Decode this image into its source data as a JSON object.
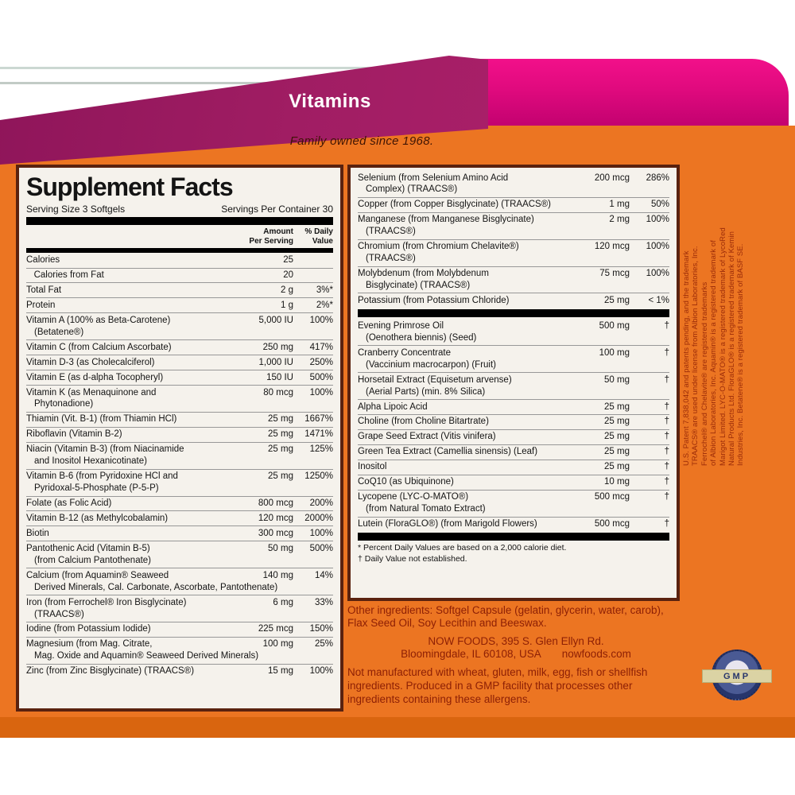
{
  "header": {
    "category_banner": "Vitamins",
    "tagline": "Family owned since 1968."
  },
  "colors": {
    "label_orange": "#EC7522",
    "label_orange_dark": "#D9650F",
    "band_pink": "#E80B80",
    "band_magenta": "#9C1A60",
    "panel_border": "#5A220F",
    "footer_text_red": "#8E2005",
    "seal_navy": "#27356B",
    "seal_ribbon": "#DBD3A4"
  },
  "supplement_facts": {
    "title": "Supplement Facts",
    "serving_size": "Serving Size 3 Softgels",
    "servings_per_container": "Servings Per Container 30",
    "amount_header_line1": "Amount",
    "amount_header_line2": "Per Serving",
    "dv_header_line1": "% Daily",
    "dv_header_line2": "Value",
    "left_rows": [
      {
        "name": "Calories",
        "name2": "",
        "amount": "25",
        "dv": ""
      },
      {
        "name": "   Calories from Fat",
        "name2": "",
        "amount": "20",
        "dv": ""
      },
      {
        "name": "Total Fat",
        "name2": "",
        "amount": "2 g",
        "dv": "3%*"
      },
      {
        "name": "Protein",
        "name2": "",
        "amount": "1 g",
        "dv": "2%*"
      },
      {
        "name": "Vitamin A (100% as Beta-Carotene)",
        "name2": "(Betatene®)",
        "amount": "5,000 IU",
        "dv": "100%"
      },
      {
        "name": "Vitamin C (from Calcium Ascorbate)",
        "name2": "",
        "amount": "250 mg",
        "dv": "417%"
      },
      {
        "name": "Vitamin D-3 (as Cholecalciferol)",
        "name2": "",
        "amount": "1,000 IU",
        "dv": "250%"
      },
      {
        "name": "Vitamin E (as d-alpha Tocopheryl)",
        "name2": "",
        "amount": "150 IU",
        "dv": "500%"
      },
      {
        "name": "Vitamin K (as Menaquinone and",
        "name2": "Phytonadione)",
        "amount": "80 mcg",
        "dv": "100%"
      },
      {
        "name": "Thiamin (Vit. B-1) (from Thiamin HCl)",
        "name2": "",
        "amount": "25 mg",
        "dv": "1667%"
      },
      {
        "name": "Riboflavin (Vitamin B-2)",
        "name2": "",
        "amount": "25 mg",
        "dv": "1471%"
      },
      {
        "name": "Niacin (Vitamin B-3) (from Niacinamide",
        "name2": "and Inositol Hexanicotinate)",
        "amount": "25 mg",
        "dv": "125%"
      },
      {
        "name": "Vitamin B-6 (from Pyridoxine HCl and",
        "name2": "Pyridoxal-5-Phosphate (P-5-P)",
        "amount": "25 mg",
        "dv": "1250%"
      },
      {
        "name": "Folate (as Folic Acid)",
        "name2": "",
        "amount": "800 mcg",
        "dv": "200%"
      },
      {
        "name": "Vitamin B-12 (as Methylcobalamin)",
        "name2": "",
        "amount": "120 mcg",
        "dv": "2000%"
      },
      {
        "name": "Biotin",
        "name2": "",
        "amount": "300 mcg",
        "dv": "100%"
      },
      {
        "name": "Pantothenic Acid (Vitamin B-5)",
        "name2": "(from Calcium Pantothenate)",
        "amount": "50 mg",
        "dv": "500%"
      },
      {
        "name": "Calcium (from Aquamin® Seaweed",
        "name2": "Derived Minerals, Cal. Carbonate, Ascorbate, Pantothenate)",
        "amount": "140 mg",
        "dv": "14%"
      },
      {
        "name": "Iron (from Ferrochel® Iron Bisglycinate)",
        "name2": "(TRAACS®)",
        "amount": "6 mg",
        "dv": "33%"
      },
      {
        "name": "Iodine (from Potassium Iodide)",
        "name2": "",
        "amount": "225 mcg",
        "dv": "150%"
      },
      {
        "name": "Magnesium (from Mag. Citrate,",
        "name2": "Mag. Oxide and Aquamin® Seaweed Derived Minerals)",
        "amount": "100 mg",
        "dv": "25%"
      },
      {
        "name": "Zinc (from Zinc Bisglycinate) (TRAACS®)",
        "name2": "",
        "amount": "15 mg",
        "dv": "100%"
      }
    ],
    "right_rows_minerals": [
      {
        "name": "Selenium (from Selenium Amino Acid",
        "name2": "Complex) (TRAACS®)",
        "amount": "200 mcg",
        "dv": "286%"
      },
      {
        "name": "Copper (from Copper Bisglycinate) (TRAACS®)",
        "name2": "",
        "amount": "1 mg",
        "dv": "50%"
      },
      {
        "name": "Manganese (from Manganese Bisglycinate)",
        "name2": "(TRAACS®)",
        "amount": "2 mg",
        "dv": "100%"
      },
      {
        "name": "Chromium (from Chromium Chelavite®)",
        "name2": "(TRAACS®)",
        "amount": "120 mcg",
        "dv": "100%"
      },
      {
        "name": "Molybdenum (from Molybdenum",
        "name2": "Bisglycinate) (TRAACS®)",
        "amount": "75 mcg",
        "dv": "100%"
      },
      {
        "name": "Potassium (from Potassium Chloride)",
        "name2": "",
        "amount": "25 mg",
        "dv": "< 1%"
      }
    ],
    "right_rows_botanicals": [
      {
        "name": "Evening Primrose Oil",
        "name2": "(Oenothera biennis) (Seed)",
        "amount": "500 mg",
        "dv": "†"
      },
      {
        "name": "Cranberry Concentrate",
        "name2": "(Vaccinium macrocarpon) (Fruit)",
        "amount": "100 mg",
        "dv": "†"
      },
      {
        "name": "Horsetail Extract (Equisetum arvense)",
        "name2": "(Aerial Parts) (min. 8% Silica)",
        "amount": "50 mg",
        "dv": "†"
      },
      {
        "name": "Alpha Lipoic Acid",
        "name2": "",
        "amount": "25 mg",
        "dv": "†"
      },
      {
        "name": "Choline (from Choline Bitartrate)",
        "name2": "",
        "amount": "25 mg",
        "dv": "†"
      },
      {
        "name": "Grape Seed Extract (Vitis vinifera)",
        "name2": "",
        "amount": "25 mg",
        "dv": "†"
      },
      {
        "name": "Green Tea Extract (Camellia sinensis) (Leaf)",
        "name2": "",
        "amount": "25 mg",
        "dv": "†"
      },
      {
        "name": "Inositol",
        "name2": "",
        "amount": "25 mg",
        "dv": "†"
      },
      {
        "name": "CoQ10 (as Ubiquinone)",
        "name2": "",
        "amount": "10 mg",
        "dv": "†"
      },
      {
        "name": "Lycopene (LYC-O-MATO®)",
        "name2": "(from Natural Tomato Extract)",
        "amount": "500 mcg",
        "dv": "†"
      },
      {
        "name": "Lutein (FloraGLO®) (from Marigold Flowers)",
        "name2": "",
        "amount": "500 mcg",
        "dv": "†"
      }
    ],
    "footnote_dv": "* Percent Daily Values are based on a 2,000 calorie diet.",
    "footnote_dagger": "† Daily Value not established."
  },
  "bottom": {
    "other_ingredients": "Other ingredients: Softgel Capsule (gelatin, glycerin, water, carob), Flax Seed Oil, Soy Lecithin and Beeswax.",
    "address_line1": "NOW FOODS, 395 S. Glen Ellyn Rd.",
    "address_line2": "Bloomingdale, IL 60108, USA",
    "website": "nowfoods.com",
    "allergen_statement": "Not manufactured with wheat, gluten, milk, egg, fish or shellfish ingredients. Produced in a GMP facility that processes other ingredients containing these allergens."
  },
  "side_text": {
    "lines": [
      "U.S. Patent 7,838,042 and patents pending, and the trademark",
      "TRAACS® are used under license from Albion Laboratories, Inc.",
      "Ferrochel® and Chelavite® are registered trademarks",
      "of Albion Laboratories, Inc.  Aquamin® is a registered trademark of",
      "Marigot Limited.  LYC-O-MATO® is a registered trademark of LycoRed",
      "Natural Products Ltd.  FloraGLO® is a registered trademark of Kemin",
      "Industries, Inc.  Betatene® is a registered trademark of BASF SE."
    ]
  },
  "seal": {
    "label": "GMP"
  }
}
